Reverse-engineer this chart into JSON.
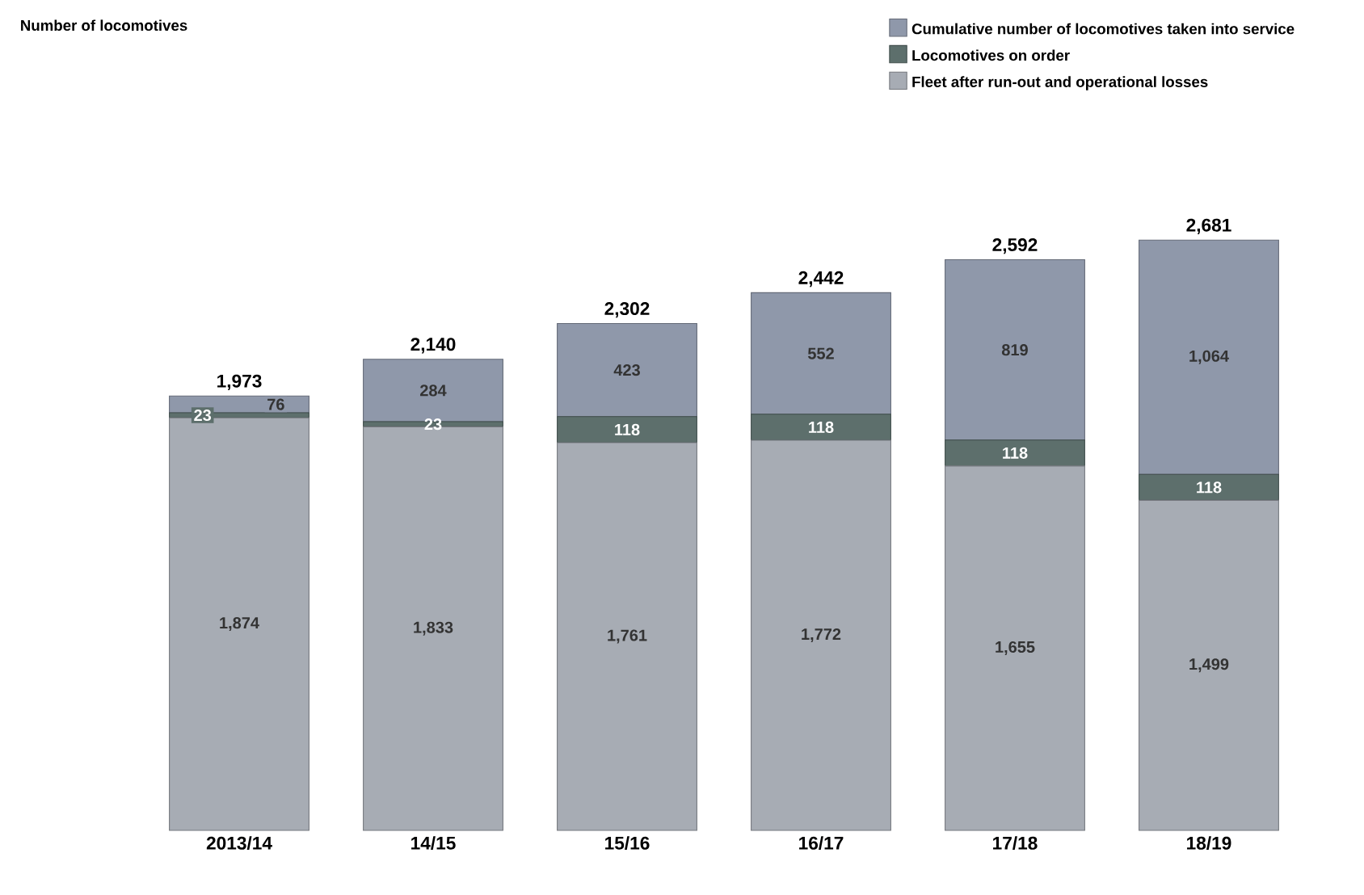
{
  "chart_data": {
    "type": "bar",
    "stacked": true,
    "annotations": [
      "Number of locomotives"
    ],
    "categories": [
      "2013/14",
      "14/15",
      "15/16",
      "16/17",
      "17/18",
      "18/19"
    ],
    "series": [
      {
        "name": "Fleet after run-out and operational losses",
        "color": "#a7acb4",
        "values": [
          1874,
          1833,
          1761,
          1772,
          1655,
          1499
        ],
        "value_labels": [
          "1,874",
          "1,833",
          "1,761",
          "1,772",
          "1,655",
          "1,499"
        ]
      },
      {
        "name": "Locomotives on order",
        "color": "#5d6f6c",
        "values": [
          23,
          23,
          118,
          118,
          118,
          118
        ],
        "value_labels": [
          "23",
          "23",
          "118",
          "118",
          "118",
          "118"
        ]
      },
      {
        "name": "Cumulative number of locomotives taken into service",
        "color": "#8f98aa",
        "values": [
          76,
          284,
          423,
          552,
          819,
          1064
        ],
        "value_labels": [
          "76",
          "284",
          "423",
          "552",
          "819",
          "1,064"
        ]
      }
    ],
    "totals": [
      "1,973",
      "2,140",
      "2,302",
      "2,442",
      "2,592",
      "2,681"
    ],
    "legend": "top right"
  }
}
